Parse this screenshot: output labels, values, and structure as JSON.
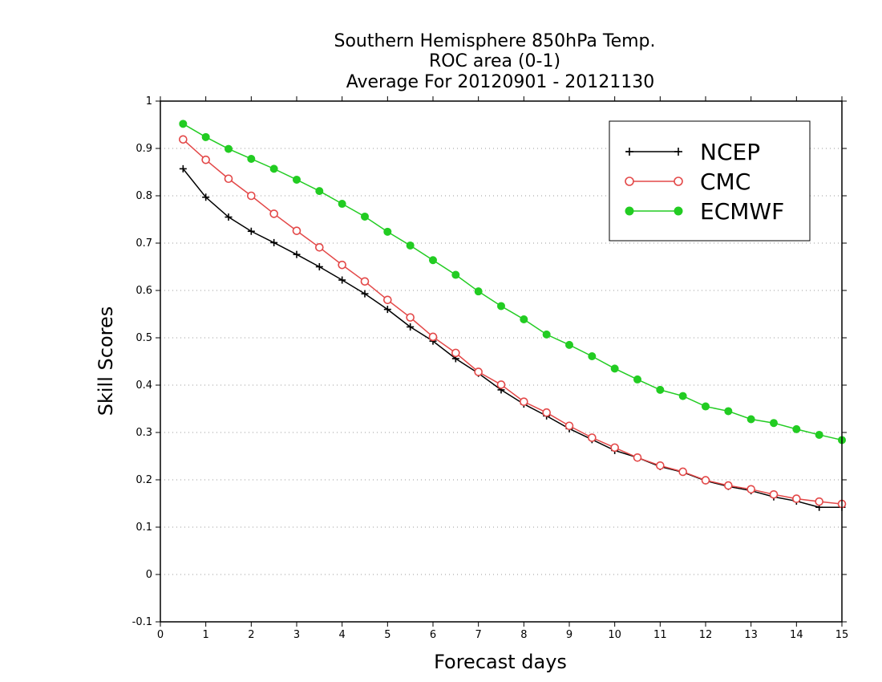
{
  "chart_data": {
    "type": "line",
    "title_lines": [
      "Southern Hemisphere 850hPa Temp.",
      "ROC area (0-1)",
      "Average For 20120901 - 20121130"
    ],
    "xlabel": "Forecast days",
    "ylabel": "Skill Scores",
    "xlim": [
      0,
      15
    ],
    "ylim": [
      -0.1,
      1
    ],
    "x_ticks": [
      0,
      1,
      2,
      3,
      4,
      5,
      6,
      7,
      8,
      9,
      10,
      11,
      12,
      13,
      14,
      15
    ],
    "y_ticks": [
      -0.1,
      0,
      0.1,
      0.2,
      0.3,
      0.4,
      0.5,
      0.6,
      0.7,
      0.8,
      0.9,
      1
    ],
    "y_tick_labels": [
      "-0.1",
      "0",
      "0.1",
      "0.2",
      "0.3",
      "0.4",
      "0.5",
      "0.6",
      "0.7",
      "0.8",
      "0.9",
      "1"
    ],
    "x_tick_labels": [
      "0",
      "1",
      "2",
      "3",
      "4",
      "5",
      "6",
      "7",
      "8",
      "9",
      "10",
      "11",
      "12",
      "13",
      "14",
      "15"
    ],
    "grid": "horizontal dotted",
    "legend_position": "top-right",
    "x": [
      0.5,
      1,
      1.5,
      2,
      2.5,
      3,
      3.5,
      4,
      4.5,
      5,
      5.5,
      6,
      6.5,
      7,
      7.5,
      8,
      8.5,
      9,
      9.5,
      10,
      10.5,
      11,
      11.5,
      12,
      12.5,
      13,
      13.5,
      14,
      14.5,
      15
    ],
    "series": [
      {
        "name": "NCEP",
        "color": "#000000",
        "marker": "plus",
        "values": [
          0.857,
          0.797,
          0.755,
          0.725,
          0.701,
          0.676,
          0.65,
          0.622,
          0.593,
          0.56,
          0.523,
          0.493,
          0.456,
          0.425,
          0.39,
          0.36,
          0.335,
          0.308,
          0.285,
          0.262,
          0.247,
          0.228,
          0.216,
          0.198,
          0.186,
          0.177,
          0.164,
          0.155,
          0.142,
          0.142
        ]
      },
      {
        "name": "CMC",
        "color": "#e34848",
        "marker": "open-circle",
        "values": [
          0.919,
          0.876,
          0.836,
          0.8,
          0.762,
          0.726,
          0.691,
          0.654,
          0.619,
          0.58,
          0.543,
          0.502,
          0.468,
          0.428,
          0.401,
          0.365,
          0.342,
          0.314,
          0.289,
          0.268,
          0.247,
          0.23,
          0.217,
          0.199,
          0.188,
          0.18,
          0.169,
          0.16,
          0.154,
          0.149
        ]
      },
      {
        "name": "ECMWF",
        "color": "#22cc22",
        "marker": "filled-circle",
        "values": [
          0.952,
          0.924,
          0.899,
          0.878,
          0.857,
          0.834,
          0.81,
          0.783,
          0.756,
          0.724,
          0.695,
          0.664,
          0.633,
          0.598,
          0.567,
          0.539,
          0.507,
          0.485,
          0.461,
          0.435,
          0.412,
          0.39,
          0.377,
          0.355,
          0.345,
          0.328,
          0.32,
          0.307,
          0.295,
          0.284
        ]
      }
    ]
  }
}
